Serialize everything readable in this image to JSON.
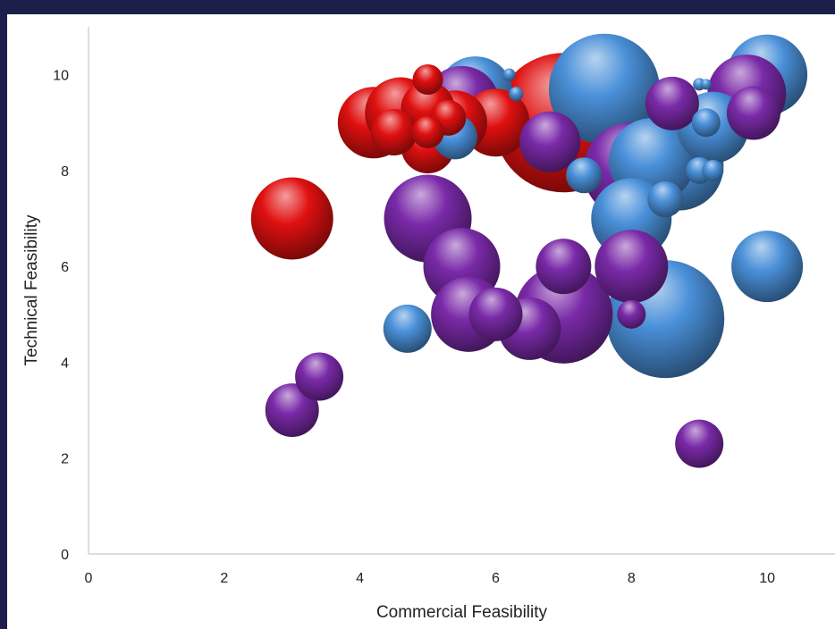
{
  "chart_data": {
    "type": "bubble",
    "xlabel": "Commercial Feasibility",
    "ylabel": "Technical Feasibility",
    "xlim": [
      0,
      11
    ],
    "ylim": [
      0,
      11
    ],
    "x_ticks": [
      0,
      2,
      4,
      6,
      8,
      10
    ],
    "y_ticks": [
      0,
      2,
      4,
      6,
      8,
      10
    ],
    "grid": false,
    "legend": "none",
    "series": [
      {
        "color": "#4a90d9",
        "points": [
          {
            "x": 7.6,
            "y": 9.7,
            "size": 62
          },
          {
            "x": 8.5,
            "y": 4.9,
            "size": 66
          },
          {
            "x": 8.3,
            "y": 8.2,
            "size": 48
          },
          {
            "x": 10.0,
            "y": 10.0,
            "size": 45
          },
          {
            "x": 8.7,
            "y": 8.1,
            "size": 50
          },
          {
            "x": 8.0,
            "y": 7.0,
            "size": 45
          },
          {
            "x": 10.0,
            "y": 6.0,
            "size": 40
          },
          {
            "x": 5.7,
            "y": 9.6,
            "size": 42
          },
          {
            "x": 9.2,
            "y": 8.9,
            "size": 40
          },
          {
            "x": 5.4,
            "y": 8.7,
            "size": 25
          },
          {
            "x": 7.3,
            "y": 7.9,
            "size": 20
          },
          {
            "x": 8.5,
            "y": 7.4,
            "size": 20
          },
          {
            "x": 4.7,
            "y": 4.7,
            "size": 27
          },
          {
            "x": 9.1,
            "y": 9.0,
            "size": 16
          },
          {
            "x": 9.0,
            "y": 8.0,
            "size": 15
          },
          {
            "x": 9.2,
            "y": 8.0,
            "size": 12
          },
          {
            "x": 9.0,
            "y": 9.8,
            "size": 7
          },
          {
            "x": 6.3,
            "y": 9.6,
            "size": 8
          },
          {
            "x": 6.2,
            "y": 10.0,
            "size": 7
          },
          {
            "x": 9.1,
            "y": 9.8,
            "size": 6
          }
        ]
      },
      {
        "color": "#e01010",
        "points": [
          {
            "x": 7.0,
            "y": 9.0,
            "size": 78
          },
          {
            "x": 3.0,
            "y": 7.0,
            "size": 46
          },
          {
            "x": 4.2,
            "y": 9.0,
            "size": 40
          },
          {
            "x": 4.6,
            "y": 9.2,
            "size": 40
          },
          {
            "x": 6.0,
            "y": 9.0,
            "size": 38
          },
          {
            "x": 5.4,
            "y": 9.0,
            "size": 36
          },
          {
            "x": 5.0,
            "y": 8.5,
            "size": 30
          },
          {
            "x": 5.0,
            "y": 9.3,
            "size": 30
          },
          {
            "x": 4.5,
            "y": 8.8,
            "size": 26
          },
          {
            "x": 5.0,
            "y": 8.8,
            "size": 18
          },
          {
            "x": 5.0,
            "y": 9.9,
            "size": 17
          },
          {
            "x": 5.3,
            "y": 9.1,
            "size": 20
          }
        ]
      },
      {
        "color": "#7a2aa8",
        "points": [
          {
            "x": 7.0,
            "y": 5.0,
            "size": 55
          },
          {
            "x": 8.0,
            "y": 8.0,
            "size": 54
          },
          {
            "x": 9.7,
            "y": 9.6,
            "size": 44
          },
          {
            "x": 5.0,
            "y": 7.0,
            "size": 49
          },
          {
            "x": 5.6,
            "y": 5.0,
            "size": 42
          },
          {
            "x": 5.5,
            "y": 9.4,
            "size": 42
          },
          {
            "x": 5.5,
            "y": 6.0,
            "size": 43
          },
          {
            "x": 8.0,
            "y": 6.0,
            "size": 41
          },
          {
            "x": 6.5,
            "y": 4.7,
            "size": 35
          },
          {
            "x": 6.8,
            "y": 8.6,
            "size": 34
          },
          {
            "x": 7.0,
            "y": 6.0,
            "size": 31
          },
          {
            "x": 6.0,
            "y": 5.0,
            "size": 30
          },
          {
            "x": 8.6,
            "y": 9.4,
            "size": 30
          },
          {
            "x": 9.8,
            "y": 9.2,
            "size": 30
          },
          {
            "x": 3.0,
            "y": 3.0,
            "size": 30
          },
          {
            "x": 3.4,
            "y": 3.7,
            "size": 27
          },
          {
            "x": 9.0,
            "y": 2.3,
            "size": 27
          },
          {
            "x": 8.0,
            "y": 5.0,
            "size": 16
          }
        ]
      }
    ]
  }
}
